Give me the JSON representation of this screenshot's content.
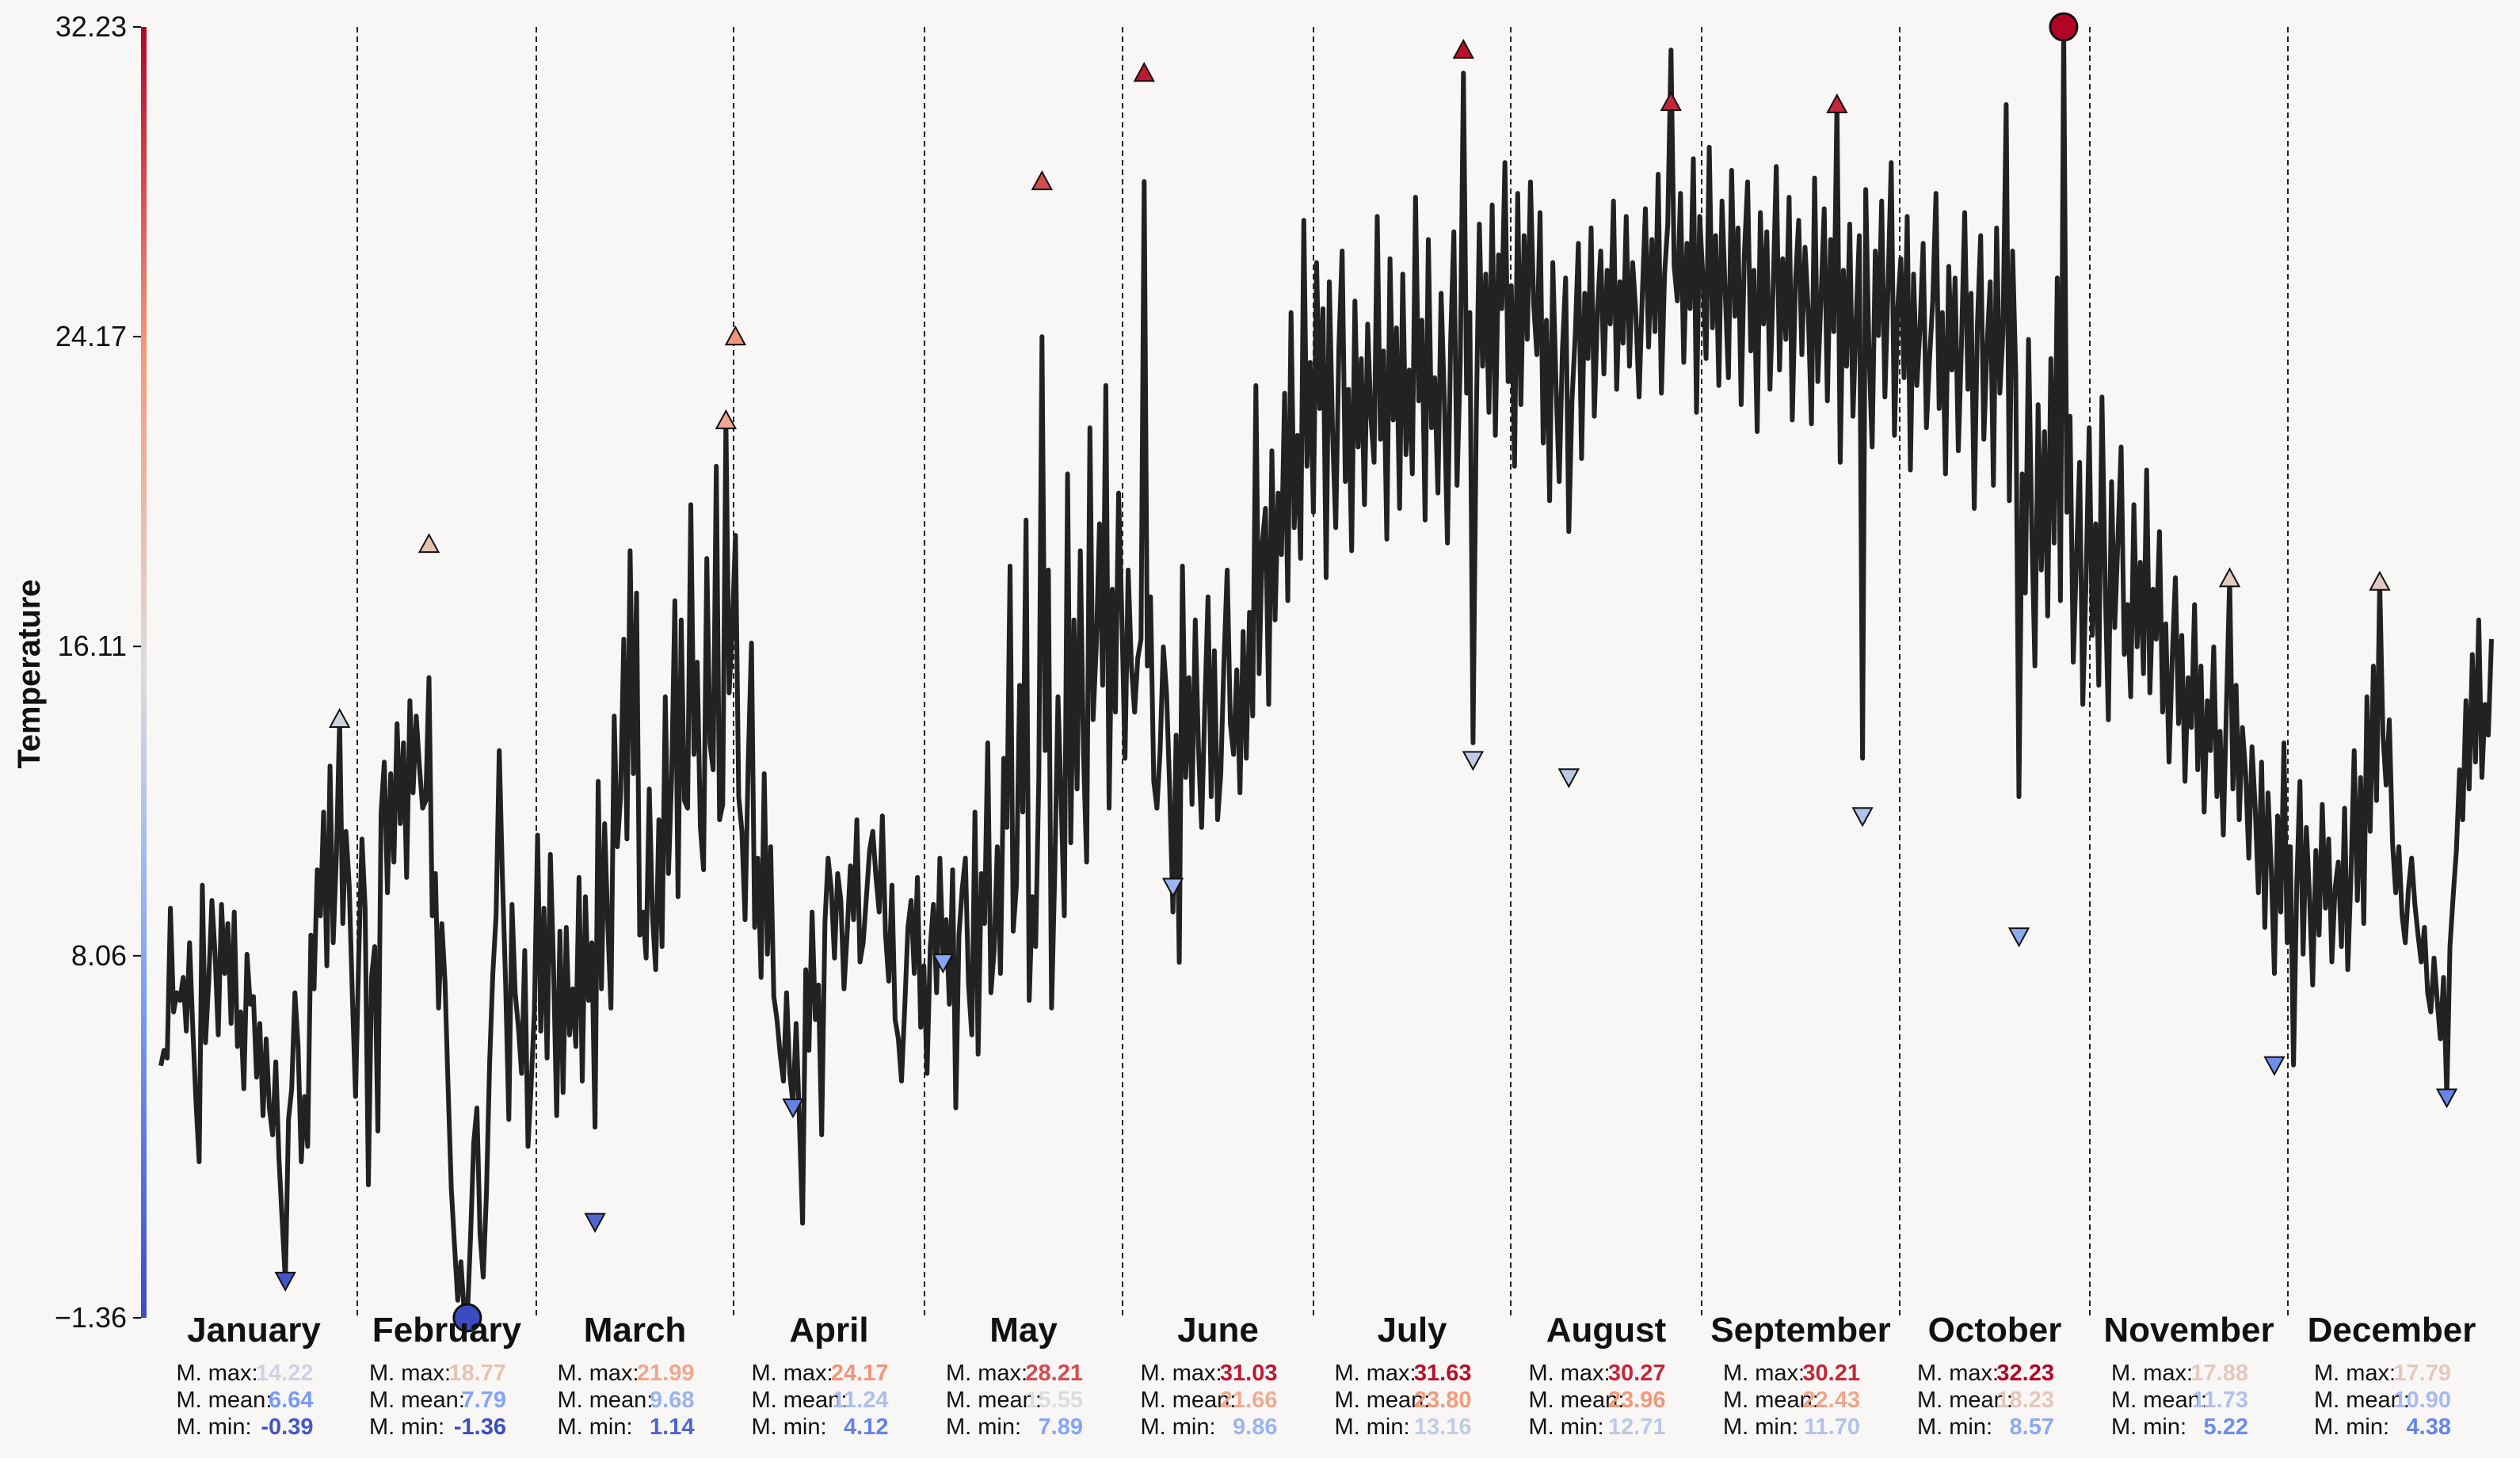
{
  "chart_data": {
    "type": "line",
    "ylabel": "Temperature",
    "xlabel": "",
    "title": "",
    "ylim": [
      -1.36,
      32.23
    ],
    "yticks": [
      -1.36,
      8.06,
      16.11,
      24.17,
      32.23
    ],
    "ytick_labels": [
      "−1.36",
      "8.06",
      "16.11",
      "24.17",
      "32.23"
    ],
    "colormap": "coolwarm",
    "colors": {
      "line": "#222222",
      "cold": "#3b4cc0",
      "warm": "#b40426",
      "neutral": "#dddcdc"
    },
    "stat_labels": {
      "max": "M. max:",
      "mean": "M. mean:",
      "min": "M. min:"
    },
    "months": [
      {
        "name": "January",
        "max": "14.22",
        "mean": "6.64",
        "min": "-0.39"
      },
      {
        "name": "February",
        "max": "18.77",
        "mean": "7.79",
        "min": "-1.36"
      },
      {
        "name": "March",
        "max": "21.99",
        "mean": "9.68",
        "min": "1.14"
      },
      {
        "name": "April",
        "max": "24.17",
        "mean": "11.24",
        "min": "4.12"
      },
      {
        "name": "May",
        "max": "28.21",
        "mean": "15.55",
        "min": "7.89"
      },
      {
        "name": "June",
        "max": "31.03",
        "mean": "21.66",
        "min": "9.86"
      },
      {
        "name": "July",
        "max": "31.63",
        "mean": "23.80",
        "min": "13.16"
      },
      {
        "name": "August",
        "max": "30.27",
        "mean": "23.96",
        "min": "12.71"
      },
      {
        "name": "September",
        "max": "30.21",
        "mean": "22.43",
        "min": "11.70"
      },
      {
        "name": "October",
        "max": "32.23",
        "mean": "18.23",
        "min": "8.57"
      },
      {
        "name": "November",
        "max": "17.88",
        "mean": "11.73",
        "min": "5.22"
      },
      {
        "name": "December",
        "max": "17.79",
        "mean": "10.90",
        "min": "4.38"
      }
    ],
    "series": [
      {
        "values": [
          5.2,
          5.6,
          5.4,
          9.3,
          6.6,
          7.1,
          6.9,
          7.5,
          6.1,
          8.4,
          6.2,
          4.3,
          2.7,
          9.9,
          5.8,
          7.4,
          9.5,
          8.1,
          6.0,
          9.4,
          7.6,
          8.9,
          6.3,
          9.2,
          5.7,
          6.6,
          4.6,
          8.1,
          6.8,
          7.0,
          4.9,
          6.3,
          3.9,
          5.9,
          4.1,
          3.4,
          5.3,
          2.8,
          1.2,
          -0.4,
          3.8,
          4.6,
          7.1,
          5.7,
          2.7,
          4.4,
          3.1,
          8.6,
          7.2,
          10.3,
          9.1,
          11.8,
          7.8,
          13.0,
          8.4,
          10.7,
          14.2,
          8.9,
          11.3,
          9.9,
          7.0,
          4.4,
          8.1,
          11.1,
          9.3,
          2.1,
          7.5,
          8.3,
          3.5,
          11.8,
          13.1,
          9.7,
          12.8,
          10.5,
          14.1,
          11.5,
          13.6,
          10.1,
          14.7,
          12.3,
          14.3,
          13.0,
          11.9,
          12.1,
          15.3,
          9.1,
          10.2,
          6.7,
          8.9,
          7.4,
          4.6,
          2.0,
          0.5,
          -0.9,
          0.1,
          -1.2,
          -1.36,
          0.7,
          3.2,
          4.1,
          0.8,
          -0.3,
          1.9,
          5.3,
          7.6,
          9.1,
          13.4,
          10.1,
          7.3,
          3.8,
          9.4,
          7.1,
          6.2,
          5.0,
          8.2,
          3.1,
          4.7,
          6.6,
          11.2,
          6.1,
          9.3,
          5.4,
          10.7,
          7.8,
          3.9,
          8.7,
          4.5,
          8.8,
          6.0,
          7.2,
          5.7,
          10.1,
          4.8,
          9.6,
          6.9,
          8.4,
          3.6,
          12.6,
          7.2,
          11.5,
          8.9,
          6.7,
          14.3,
          10.9,
          12.2,
          16.3,
          11.1,
          18.6,
          12.8,
          17.5,
          8.6,
          9.2,
          8.0,
          12.4,
          9.1,
          7.7,
          11.6,
          8.3,
          14.8,
          10.2,
          12.7,
          17.3,
          9.6,
          16.8,
          12.1,
          11.9,
          19.8,
          13.3,
          15.7,
          11.4,
          10.3,
          18.4,
          13.6,
          12.9,
          20.8,
          11.6,
          12.0,
          21.99,
          14.9,
          16.6,
          19.0,
          12.2,
          11.3,
          9.0,
          13.1,
          16.2,
          8.8,
          10.6,
          7.5,
          12.8,
          8.1,
          10.9,
          7.0,
          6.4,
          5.5,
          4.8,
          7.1,
          5.0,
          4.2,
          6.3,
          3.8,
          1.1,
          7.7,
          5.6,
          9.2,
          6.4,
          7.3,
          3.4,
          8.9,
          10.6,
          9.8,
          8.0,
          10.2,
          9.5,
          7.2,
          8.7,
          10.4,
          9.0,
          11.6,
          7.9,
          8.4,
          9.6,
          10.8,
          11.3,
          10.1,
          9.2,
          11.7,
          8.6,
          7.4,
          9.9,
          6.4,
          5.9,
          4.8,
          6.7,
          8.8,
          9.5,
          7.6,
          10.1,
          6.2,
          7.8,
          5.0,
          8.3,
          9.4,
          7.1,
          10.6,
          8.0,
          9.0,
          6.8,
          10.3,
          4.1,
          8.6,
          9.8,
          10.6,
          7.3,
          6.0,
          11.8,
          5.5,
          10.2,
          8.9,
          13.6,
          7.1,
          8.2,
          10.9,
          7.6,
          13.2,
          11.4,
          18.2,
          8.7,
          9.9,
          15.1,
          11.8,
          19.4,
          6.9,
          9.6,
          8.3,
          12.7,
          24.17,
          13.4,
          18.1,
          6.7,
          10.2,
          14.8,
          12.1,
          9.1,
          20.6,
          11.0,
          16.8,
          12.4,
          18.6,
          13.3,
          10.5,
          21.8,
          14.2,
          16.1,
          19.3,
          15.1,
          22.9,
          11.9,
          17.6,
          14.4,
          20.1,
          16.9,
          13.2,
          18.1,
          15.6,
          14.4,
          15.8,
          16.3,
          28.21,
          15.6,
          17.4,
          12.6,
          11.9,
          13.4,
          16.1,
          14.9,
          12.4,
          9.2,
          13.8,
          7.89,
          18.2,
          12.7,
          15.3,
          12.0,
          16.8,
          13.5,
          11.4,
          14.6,
          17.4,
          12.2,
          16.0,
          11.6,
          12.8,
          15.7,
          18.1,
          14.1,
          13.3,
          15.5,
          12.3,
          16.5,
          13.2,
          17.0,
          14.3,
          22.9,
          15.4,
          18.8,
          19.7,
          14.6,
          21.2,
          16.8,
          20.1,
          18.5,
          22.7,
          17.3,
          24.8,
          19.2,
          21.6,
          18.4,
          27.2,
          20.8,
          23.5,
          19.6,
          26.1,
          22.3,
          24.9,
          17.9,
          25.6,
          21.7,
          19.2,
          23.9,
          26.4,
          20.4,
          22.8,
          18.6,
          25.1,
          21.3,
          23.6,
          19.8,
          24.5,
          22.1,
          20.9,
          27.3,
          21.5,
          23.8,
          18.9,
          26.2,
          22.0,
          24.4,
          19.7,
          25.8,
          21.1,
          23.3,
          20.6,
          27.8,
          22.5,
          24.6,
          19.4,
          26.7,
          21.8,
          23.1,
          20.1,
          25.3,
          22.6,
          18.8,
          24.1,
          26.9,
          20.3,
          23.5,
          31.03,
          22.7,
          24.8,
          13.6,
          21.9,
          27.1,
          23.4,
          25.8,
          22.2,
          27.6,
          21.6,
          26.3,
          24.9,
          28.7,
          23.0,
          25.5,
          20.8,
          27.9,
          22.4,
          26.8,
          24.1,
          28.2,
          25.0,
          23.7,
          27.4,
          21.4,
          24.6,
          19.9,
          26.1,
          22.9,
          20.4,
          23.8,
          25.7,
          19.1,
          22.5,
          24.2,
          26.6,
          21.0,
          25.3,
          23.6,
          27.0,
          22.1,
          24.9,
          26.4,
          23.2,
          25.9,
          24.5,
          27.7,
          22.8,
          25.6,
          24.0,
          27.3,
          23.4,
          26.1,
          24.8,
          22.6,
          25.2,
          27.5,
          23.9,
          26.7,
          24.3,
          28.4,
          22.7,
          25.8,
          27.1,
          31.63,
          26.0,
          25.1,
          27.9,
          23.5,
          26.6,
          24.9,
          28.8,
          22.2,
          27.3,
          25.7,
          23.6,
          29.1,
          24.4,
          26.8,
          22.9,
          27.7,
          25.3,
          23.1,
          28.5,
          24.7,
          27.0,
          22.4,
          26.3,
          28.2,
          23.8,
          25.9,
          21.7,
          27.4,
          24.5,
          26.9,
          22.8,
          25.4,
          28.6,
          23.3,
          26.2,
          24.1,
          27.8,
          22.0,
          25.6,
          27.2,
          23.7,
          26.5,
          24.8,
          21.9,
          28.3,
          23.0,
          25.2,
          27.5,
          22.5,
          26.7,
          24.3,
          30.27,
          20.9,
          25.9,
          23.4,
          27.1,
          22.1,
          24.6,
          26.8,
          13.2,
          28.0,
          23.9,
          21.3,
          26.4,
          24.2,
          27.7,
          22.6,
          25.5,
          28.7,
          21.6,
          24.9,
          26.2,
          23.1,
          27.3,
          20.7,
          25.8,
          22.9,
          24.4,
          26.6,
          21.8,
          23.6,
          25.1,
          27.9,
          22.3,
          24.8,
          20.6,
          26.0,
          23.3,
          25.7,
          21.2,
          24.0,
          27.4,
          22.8,
          25.3,
          19.7,
          24.5,
          26.8,
          21.5,
          23.9,
          25.6,
          20.3,
          27.0,
          22.7,
          24.3,
          30.21,
          19.9,
          26.4,
          23.2,
          12.2,
          20.6,
          17.5,
          24.1,
          19.2,
          15.6,
          22.4,
          18.1,
          21.7,
          16.9,
          23.6,
          18.8,
          25.7,
          17.3,
          32.23,
          19.6,
          22.1,
          15.7,
          18.4,
          20.9,
          14.6,
          17.8,
          21.8,
          16.4,
          19.3,
          15.1,
          22.6,
          17.7,
          14.2,
          20.4,
          16.6,
          18.9,
          21.3,
          15.9,
          17.2,
          14.8,
          19.8,
          16.1,
          18.3,
          15.4,
          20.7,
          14.9,
          17.6,
          16.3,
          19.1,
          14.4,
          16.7,
          13.1,
          15.8,
          17.9,
          14.1,
          16.4,
          12.6,
          15.3,
          14.0,
          17.2,
          12.9,
          15.6,
          11.8,
          14.7,
          13.4,
          16.1,
          12.2,
          13.9,
          11.2,
          14.6,
          17.88,
          12.4,
          15.1,
          11.6,
          14.0,
          12.8,
          10.6,
          13.5,
          11.9,
          9.7,
          13.1,
          8.8,
          12.3,
          10.4,
          7.6,
          11.7,
          9.2,
          13.6,
          8.4,
          10.9,
          5.22,
          9.9,
          12.6,
          8.1,
          11.4,
          9.6,
          7.3,
          10.8,
          8.6,
          12.0,
          9.3,
          11.1,
          7.9,
          9.8,
          10.5,
          8.3,
          11.9,
          7.7,
          10.2,
          13.4,
          9.5,
          12.7,
          8.9,
          14.8,
          11.3,
          15.6,
          12.1,
          17.79,
          13.8,
          12.5,
          14.2,
          11.0,
          9.7,
          10.9,
          9.1,
          8.4,
          9.8,
          10.6,
          9.4,
          8.6,
          7.9,
          8.8,
          7.1,
          6.6,
          8.0,
          6.9,
          5.9,
          7.5,
          4.38,
          8.3,
          9.6,
          10.8,
          12.9,
          11.6,
          14.7,
          12.4,
          15.9,
          13.1,
          16.8,
          12.7,
          14.6,
          13.8,
          16.3
        ]
      }
    ],
    "markers": {
      "monthly_max": [
        14.22,
        18.77,
        21.99,
        24.17,
        28.21,
        31.03,
        31.63,
        30.27,
        30.21,
        32.23,
        17.88,
        17.79
      ],
      "monthly_min": [
        -0.39,
        -1.36,
        1.14,
        4.12,
        7.89,
        9.86,
        13.16,
        12.71,
        11.7,
        8.57,
        5.22,
        4.38
      ],
      "annual_max": 32.23,
      "annual_min": -1.36
    }
  }
}
